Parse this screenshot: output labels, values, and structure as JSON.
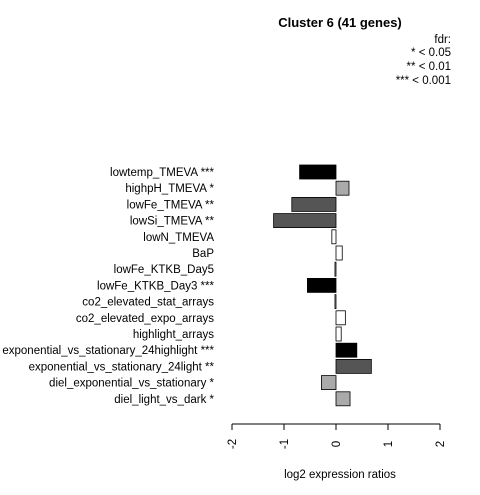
{
  "chart_data": {
    "type": "bar",
    "orientation": "horizontal",
    "title": "Cluster 6 (41 genes)",
    "xlabel": "log2 expression ratios",
    "xlim": [
      -2,
      2
    ],
    "xticks": [
      -2,
      -1,
      0,
      1,
      2
    ],
    "xtick_labels": [
      "-2",
      "-1",
      "0",
      "1",
      "2"
    ],
    "legend": {
      "title": "fdr:",
      "entries": [
        "* < 0.05",
        "** < 0.01",
        "*** < 0.001"
      ],
      "placement": "top-right"
    },
    "colors": {
      "fdr_0.001": "#000000",
      "fdr_0.01": "#555555",
      "fdr_0.05": "#aaaaaa",
      "ns": "#ffffff",
      "stroke": "#000000"
    },
    "bars": [
      {
        "label": "lowtemp_TMEVA ***",
        "value": -0.7,
        "sig": "fdr_0.001"
      },
      {
        "label": "highpH_TMEVA *",
        "value": 0.25,
        "sig": "fdr_0.05"
      },
      {
        "label": "lowFe_TMEVA **",
        "value": -0.85,
        "sig": "fdr_0.01"
      },
      {
        "label": "lowSi_TMEVA **",
        "value": -1.2,
        "sig": "fdr_0.01"
      },
      {
        "label": "lowN_TMEVA",
        "value": -0.08,
        "sig": "ns"
      },
      {
        "label": "BaP",
        "value": 0.12,
        "sig": "ns"
      },
      {
        "label": "lowFe_KTKB_Day5",
        "value": -0.02,
        "sig": "ns"
      },
      {
        "label": "lowFe_KTKB_Day3 ***",
        "value": -0.55,
        "sig": "fdr_0.001"
      },
      {
        "label": "co2_elevated_stat_arrays",
        "value": -0.02,
        "sig": "ns"
      },
      {
        "label": "co2_elevated_expo_arrays",
        "value": 0.18,
        "sig": "ns"
      },
      {
        "label": "highlight_arrays",
        "value": 0.1,
        "sig": "ns"
      },
      {
        "label": "exponential_vs_stationary_24highlight ***",
        "value": 0.4,
        "sig": "fdr_0.001"
      },
      {
        "label": "exponential_vs_stationary_24light **",
        "value": 0.68,
        "sig": "fdr_0.01"
      },
      {
        "label": "diel_exponential_vs_stationary *",
        "value": -0.28,
        "sig": "fdr_0.05"
      },
      {
        "label": "diel_light_vs_dark *",
        "value": 0.27,
        "sig": "fdr_0.05"
      }
    ]
  }
}
